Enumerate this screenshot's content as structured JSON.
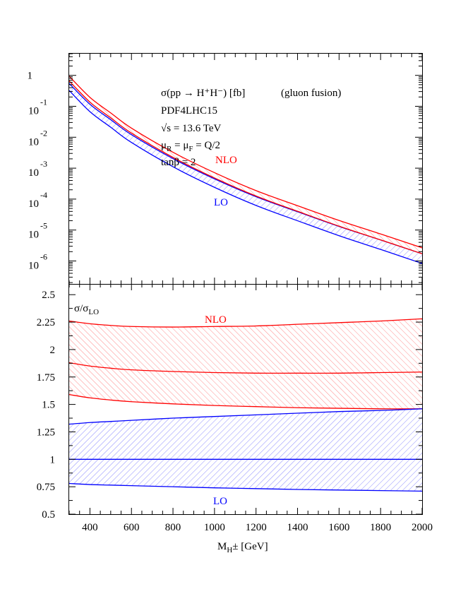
{
  "colors": {
    "nlo": "#ff0000",
    "lo": "#0000ff",
    "nlo_hatch": "#ff8080",
    "lo_hatch": "#8080ff",
    "axes": "#000000"
  },
  "chart_data": [
    {
      "type": "area",
      "panel": "top",
      "yscale": "log",
      "xlim": [
        300,
        2000
      ],
      "ylim": [
        1.9e-07,
        5.2
      ],
      "grid": false,
      "annotations": {
        "process": "σ(pp → H⁺H⁻) [fb]",
        "channel": "(gluon fusion)",
        "pdf": "PDF4LHC15",
        "energy": "√s = 13.6 TeV",
        "scale_mu": "μ",
        "scale_R": "R",
        "scale_eq": " = μ",
        "scale_F": "F",
        "scale_rest": " = Q/2",
        "tanbeta": "tanβ = 2",
        "nlo_label": "NLO",
        "lo_label": "LO"
      },
      "y_tick_labels": [
        {
          "value": 1,
          "base": "1",
          "exp": ""
        },
        {
          "value": 0.1,
          "base": "10",
          "exp": "-1"
        },
        {
          "value": 0.01,
          "base": "10",
          "exp": "-2"
        },
        {
          "value": 0.001,
          "base": "10",
          "exp": "-3"
        },
        {
          "value": 0.0001,
          "base": "10",
          "exp": "-4"
        },
        {
          "value": 1e-05,
          "base": "10",
          "exp": "-5"
        },
        {
          "value": 1e-06,
          "base": "10",
          "exp": "-6"
        }
      ],
      "x": [
        300,
        400,
        500,
        600,
        800,
        1000,
        1200,
        1400,
        1600,
        1800,
        2000
      ],
      "sigma_LO_central_fb": [
        0.417,
        0.0871,
        0.0275,
        0.00891,
        0.00148,
        0.000324,
        8.5e-05,
        2.75e-05,
        9.1e-06,
        3.3e-06,
        1.17e-06
      ],
      "note_bands": "bands in fb = sigma_LO_central_fb × ratio series of lower panel"
    },
    {
      "type": "area",
      "panel": "bottom",
      "xlim": [
        300,
        2000
      ],
      "ylim": [
        0.5,
        2.6
      ],
      "grid": false,
      "ylabel_main": "σ/σ",
      "ylabel_sub": "LO",
      "xlabel_main": "M",
      "xlabel_sub": "H",
      "xlabel_rest": "± [GeV]",
      "nlo_label": "NLO",
      "lo_label": "LO",
      "x_ticks": [
        400,
        600,
        800,
        1000,
        1200,
        1400,
        1600,
        1800,
        2000
      ],
      "y_ticks": [
        "0.5",
        "0.75",
        "1",
        "1.25",
        "1.5",
        "1.75",
        "2",
        "2.25",
        "2.5"
      ],
      "x": [
        300,
        400,
        500,
        600,
        800,
        1000,
        1200,
        1400,
        1600,
        1800,
        2000
      ],
      "series": [
        {
          "name": "LO",
          "role": "lower",
          "values": [
            0.78,
            0.77,
            0.765,
            0.76,
            0.75,
            0.74,
            0.733,
            0.725,
            0.72,
            0.715,
            0.71
          ]
        },
        {
          "name": "LO",
          "role": "central",
          "values": [
            1,
            1,
            1,
            1,
            1,
            1,
            1,
            1,
            1,
            1,
            1
          ]
        },
        {
          "name": "LO",
          "role": "upper",
          "values": [
            1.32,
            1.335,
            1.345,
            1.355,
            1.375,
            1.39,
            1.405,
            1.42,
            1.435,
            1.445,
            1.46
          ]
        },
        {
          "name": "NLO",
          "role": "lower",
          "values": [
            1.59,
            1.56,
            1.54,
            1.525,
            1.505,
            1.49,
            1.48,
            1.47,
            1.465,
            1.46,
            1.46
          ]
        },
        {
          "name": "NLO",
          "role": "central",
          "values": [
            1.88,
            1.85,
            1.83,
            1.815,
            1.8,
            1.79,
            1.785,
            1.785,
            1.785,
            1.79,
            1.795
          ]
        },
        {
          "name": "NLO",
          "role": "upper",
          "values": [
            2.26,
            2.235,
            2.22,
            2.21,
            2.205,
            2.21,
            2.215,
            2.23,
            2.245,
            2.26,
            2.28
          ]
        }
      ]
    }
  ]
}
